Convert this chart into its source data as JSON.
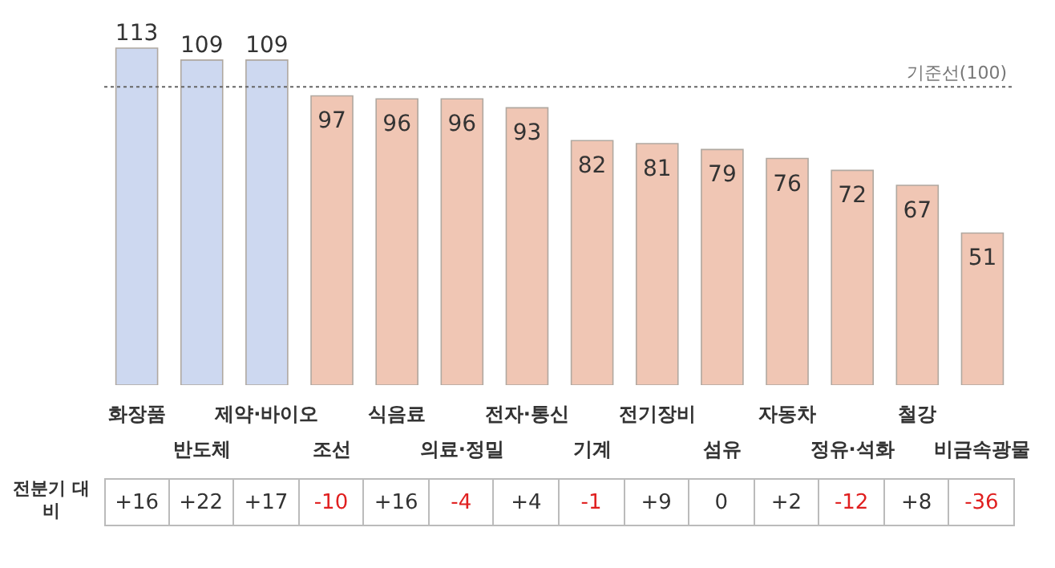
{
  "chart_data": {
    "type": "bar",
    "categories": [
      "화장품",
      "반도체",
      "제약·바이오",
      "조선",
      "식음료",
      "의료·정밀",
      "전자·통신",
      "기계",
      "전기장비",
      "섬유",
      "자동차",
      "정유·석화",
      "철강",
      "비금속광물"
    ],
    "values": [
      113,
      109,
      109,
      97,
      96,
      96,
      93,
      82,
      81,
      79,
      76,
      72,
      67,
      51
    ],
    "colors": [
      "#cdd8f0",
      "#cdd8f0",
      "#cdd8f0",
      "#f0c6b4",
      "#f0c6b4",
      "#f0c6b4",
      "#f0c6b4",
      "#f0c6b4",
      "#f0c6b4",
      "#f0c6b4",
      "#f0c6b4",
      "#f0c6b4",
      "#f0c6b4",
      "#f0c6b4"
    ],
    "data_labels": true,
    "grid": false,
    "legend": false,
    "tick_labels": "x",
    "ref_lines": [
      {
        "axis": "y",
        "value": 100,
        "label": "기준선(100)",
        "line_style": "dotted"
      }
    ],
    "annotations": [
      "전분기 대비",
      "+16",
      "+22",
      "+17",
      "-10",
      "+16",
      "-4",
      "+4",
      "-1",
      "+9",
      "0",
      "+2",
      "-12",
      "+8",
      "-36"
    ]
  }
}
